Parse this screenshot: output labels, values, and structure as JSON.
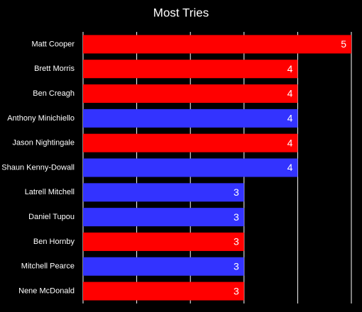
{
  "chart_data": {
    "type": "barh",
    "title": "Most Tries",
    "categories": [
      "Matt Cooper",
      "Brett Morris",
      "Ben Creagh",
      "Anthony Minichiello",
      "Jason Nightingale",
      "Shaun Kenny-Dowall",
      "Latrell Mitchell",
      "Daniel Tupou",
      "Ben Hornby",
      "Mitchell Pearce",
      "Nene McDonald"
    ],
    "values": [
      5,
      4,
      4,
      4,
      4,
      4,
      3,
      3,
      3,
      3,
      3
    ],
    "colors": [
      "#ff0000",
      "#ff0000",
      "#ff0000",
      "#3333ff",
      "#ff0000",
      "#3333ff",
      "#3333ff",
      "#3333ff",
      "#ff0000",
      "#3333ff",
      "#ff0000"
    ],
    "xlim": [
      0,
      5
    ],
    "xticks": [
      0,
      1,
      2,
      3,
      4,
      5
    ],
    "grid": true
  }
}
